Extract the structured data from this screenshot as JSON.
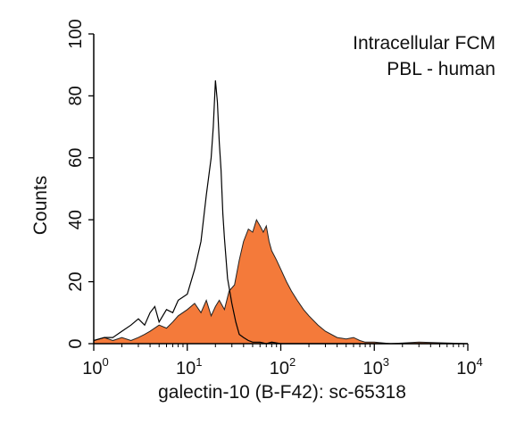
{
  "chart_data": {
    "type": "area",
    "annotations": [
      "Intracellular FCM",
      "PBL - human"
    ],
    "xlabel": "galectin-10 (B-F42): sc-65318",
    "ylabel": "Counts",
    "x_scale": "log",
    "xlim": [
      1,
      10000
    ],
    "ylim": [
      0,
      100
    ],
    "x_tick_labels": [
      {
        "base": "10",
        "exp": "0"
      },
      {
        "base": "10",
        "exp": "1"
      },
      {
        "base": "10",
        "exp": "2"
      },
      {
        "base": "10",
        "exp": "3"
      },
      {
        "base": "10",
        "exp": "4"
      }
    ],
    "x_tick_values": [
      1,
      10,
      100,
      1000,
      10000
    ],
    "y_ticks": [
      "0",
      "20",
      "40",
      "60",
      "80",
      "100"
    ],
    "y_tick_values": [
      0,
      20,
      40,
      60,
      80,
      100
    ],
    "grid": false,
    "colors": {
      "filled": "#f47a3a",
      "outline": "#000000",
      "axis": "#000000"
    },
    "series": [
      {
        "style": "filled",
        "x": [
          1,
          1.3,
          1.6,
          2,
          2.5,
          3,
          3.5,
          4,
          5,
          6,
          7,
          8,
          10,
          12,
          14,
          16,
          18,
          20,
          22,
          25,
          28,
          32,
          36,
          40,
          45,
          50,
          55,
          60,
          65,
          70,
          75,
          80,
          90,
          100,
          115,
          130,
          150,
          175,
          200,
          250,
          300,
          400,
          500,
          600,
          700,
          800,
          1000,
          1500,
          3000,
          10000
        ],
        "y": [
          1,
          2,
          1,
          2,
          1,
          2,
          3,
          4,
          6,
          5,
          7,
          9,
          11,
          13,
          10,
          14,
          9,
          12,
          14,
          11,
          17,
          19,
          27,
          33,
          37,
          36,
          40,
          38,
          36,
          38,
          33,
          30,
          27,
          24,
          20,
          17,
          14,
          11,
          9,
          6,
          4,
          2,
          1.5,
          2,
          1,
          0.5,
          0.5,
          0,
          0.5,
          0
        ]
      },
      {
        "style": "outline",
        "x": [
          1,
          1.3,
          1.6,
          2,
          2.5,
          3,
          3.5,
          4,
          4.5,
          5,
          6,
          7,
          8,
          10,
          12,
          14,
          16,
          18,
          19,
          20,
          21,
          22,
          23,
          24,
          25,
          27,
          30,
          33,
          36,
          40,
          45,
          50,
          60,
          70,
          80,
          100,
          130,
          200,
          1000,
          10000
        ],
        "y": [
          1,
          2,
          2,
          4,
          6,
          8,
          6,
          10,
          12,
          7,
          11,
          10,
          14,
          16,
          24,
          33,
          48,
          60,
          70,
          85,
          78,
          65,
          56,
          42,
          34,
          21,
          13,
          7,
          3,
          2,
          1,
          0.5,
          0.5,
          0,
          0.5,
          0,
          0,
          0,
          0,
          0
        ]
      }
    ]
  }
}
